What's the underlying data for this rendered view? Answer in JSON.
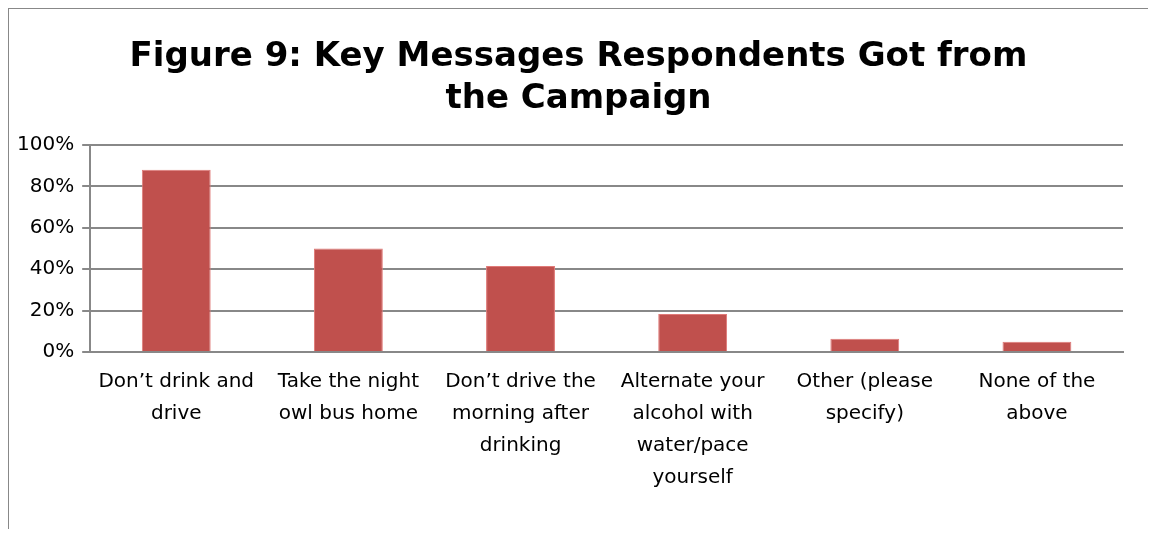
{
  "chart_data": {
    "type": "bar",
    "title": "Figure 9: Key Messages Respondents Got from the Campaign",
    "categories": [
      "Don’t drink and drive",
      "Take the night owl bus home",
      "Don’t drive the morning after drinking",
      "Alternate your alcohol with water/pace yourself",
      "Other (please specify)",
      "None of the above"
    ],
    "values": [
      88,
      50,
      41.5,
      18.3,
      6.4,
      5
    ],
    "color": "#c0504d",
    "ylim": [
      0,
      100
    ],
    "yticks": [
      {
        "value": 0,
        "label": "0%"
      },
      {
        "value": 20,
        "label": "20%"
      },
      {
        "value": 40,
        "label": "40%"
      },
      {
        "value": 60,
        "label": "60%"
      },
      {
        "value": 80,
        "label": "80%"
      },
      {
        "value": 100,
        "label": "100%"
      }
    ],
    "grid": "y",
    "legend": false
  }
}
